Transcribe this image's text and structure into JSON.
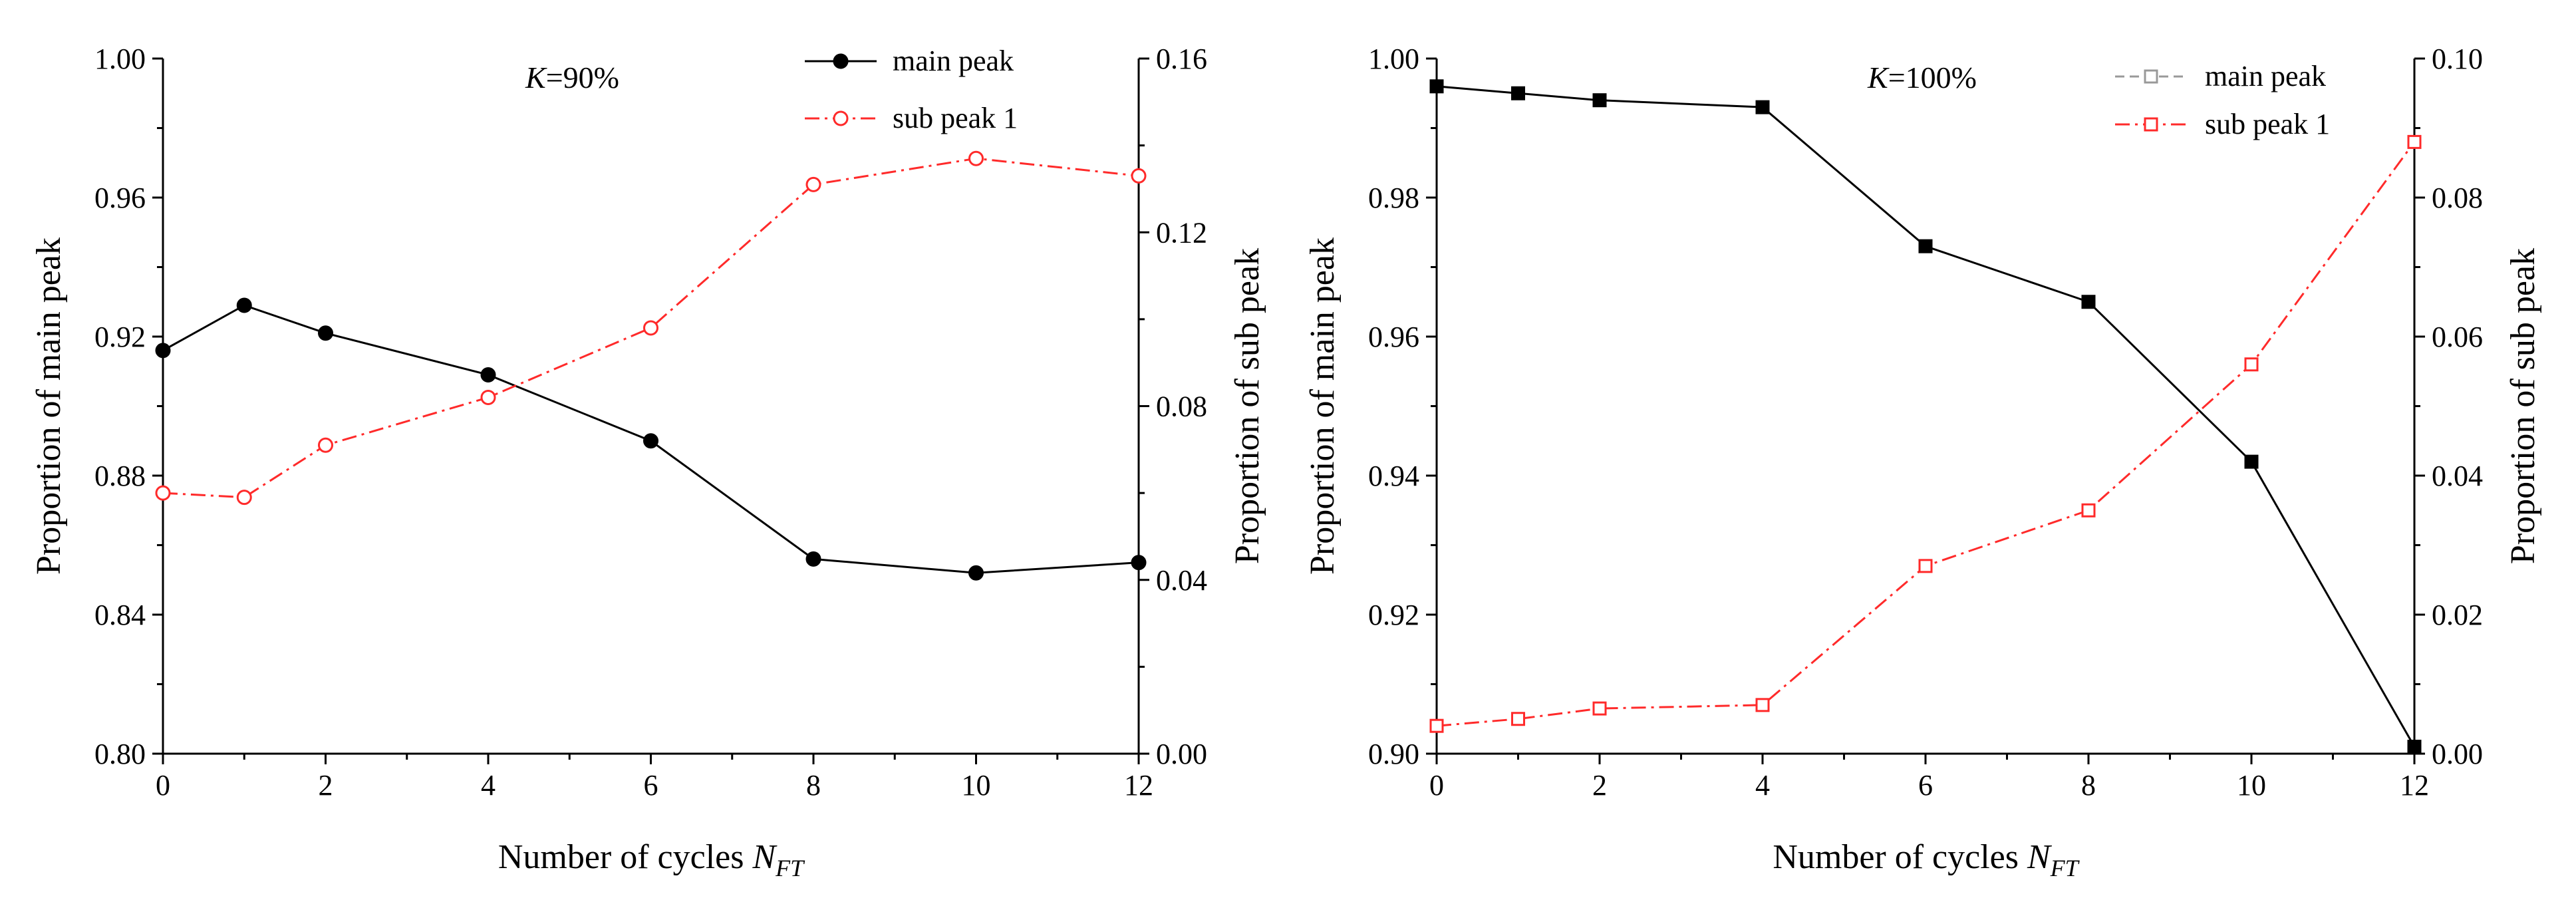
{
  "chart_data": [
    {
      "type": "line",
      "title": "",
      "annotation": {
        "var": "K",
        "rest": "=90%"
      },
      "xlabel": {
        "text": "Number of cycles ",
        "var": "N",
        "sub": "FT"
      },
      "ylabel_left": "Proportion of main peak",
      "ylabel_right": "Proportion of sub peak",
      "xlim": [
        0,
        12
      ],
      "ylim_left": [
        0.8,
        1.0
      ],
      "ylim_right": [
        0.0,
        0.16
      ],
      "x_ticks": [
        "0",
        "2",
        "4",
        "6",
        "8",
        "10",
        "12"
      ],
      "x_tick_values": [
        0,
        2,
        4,
        6,
        8,
        10,
        12
      ],
      "y_left_ticks": [
        "0.80",
        "0.84",
        "0.88",
        "0.92",
        "0.96",
        "1.00"
      ],
      "y_left_tick_values": [
        0.8,
        0.84,
        0.88,
        0.92,
        0.96,
        1.0
      ],
      "y_right_ticks": [
        "0.00",
        "0.04",
        "0.08",
        "0.12",
        "0.16"
      ],
      "y_right_tick_values": [
        0.0,
        0.04,
        0.08,
        0.12,
        0.16
      ],
      "legend_position": "top-right",
      "series": [
        {
          "name": "main peak",
          "axis": "left",
          "color": "#000000",
          "style": "solid",
          "marker": "filled-circle",
          "x": [
            0,
            1,
            2,
            4,
            6,
            8,
            10,
            12
          ],
          "values": [
            0.916,
            0.929,
            0.921,
            0.909,
            0.89,
            0.856,
            0.852,
            0.855
          ]
        },
        {
          "name": "sub peak 1",
          "axis": "right",
          "color": "#ff2a2a",
          "style": "dashdot",
          "marker": "open-circle",
          "x": [
            0,
            1,
            2,
            4,
            6,
            8,
            10,
            12
          ],
          "values": [
            0.06,
            0.059,
            0.071,
            0.082,
            0.098,
            0.131,
            0.137,
            0.133
          ]
        }
      ]
    },
    {
      "type": "line",
      "title": "",
      "annotation": {
        "var": "K",
        "rest": "=100%"
      },
      "xlabel": {
        "text": "Number of cycles ",
        "var": "N",
        "sub": "FT"
      },
      "ylabel_left": "Proportion of main peak",
      "ylabel_right": "Proportion of sub peak",
      "xlim": [
        0,
        12
      ],
      "ylim_left": [
        0.9,
        1.0
      ],
      "ylim_right": [
        0.0,
        0.1
      ],
      "x_ticks": [
        "0",
        "2",
        "4",
        "6",
        "8",
        "10",
        "12"
      ],
      "x_tick_values": [
        0,
        2,
        4,
        6,
        8,
        10,
        12
      ],
      "y_left_ticks": [
        "0.90",
        "0.92",
        "0.94",
        "0.96",
        "0.98",
        "1.00"
      ],
      "y_left_tick_values": [
        0.9,
        0.92,
        0.94,
        0.96,
        0.98,
        1.0
      ],
      "y_right_ticks": [
        "0.00",
        "0.02",
        "0.04",
        "0.06",
        "0.08",
        "0.10"
      ],
      "y_right_tick_values": [
        0.0,
        0.02,
        0.04,
        0.06,
        0.08,
        0.1
      ],
      "legend_position": "top-right",
      "legend_styles": [
        {
          "color": "#999999",
          "style": "dashed",
          "marker": "open-square"
        },
        {
          "color": "#ff2a2a",
          "style": "dashdot",
          "marker": "open-square"
        }
      ],
      "series": [
        {
          "name": "main peak",
          "axis": "left",
          "color": "#000000",
          "style": "solid",
          "marker": "filled-square",
          "x": [
            0,
            1,
            2,
            4,
            6,
            8,
            10,
            12
          ],
          "values": [
            0.996,
            0.995,
            0.994,
            0.993,
            0.973,
            0.965,
            0.942,
            0.901
          ]
        },
        {
          "name": "sub peak 1",
          "axis": "right",
          "color": "#ff2a2a",
          "style": "dashdot",
          "marker": "open-square",
          "x": [
            0,
            1,
            2,
            4,
            6,
            8,
            10,
            12
          ],
          "values": [
            0.004,
            0.005,
            0.0065,
            0.007,
            0.027,
            0.035,
            0.056,
            0.088
          ]
        }
      ]
    }
  ]
}
